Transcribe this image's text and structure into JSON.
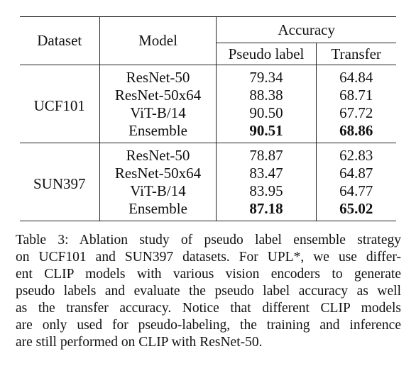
{
  "table": {
    "headers": {
      "dataset": "Dataset",
      "model": "Model",
      "accuracy": "Accuracy",
      "pseudo_label": "Pseudo label",
      "transfer": "Transfer"
    },
    "groups": [
      {
        "dataset": "UCF101",
        "rows": [
          {
            "model": "ResNet-50",
            "pseudo_label": "79.34",
            "transfer": "64.84",
            "bold": false
          },
          {
            "model": "ResNet-50x64",
            "pseudo_label": "88.38",
            "transfer": "68.71",
            "bold": false
          },
          {
            "model": "ViT-B/14",
            "pseudo_label": "90.50",
            "transfer": "67.72",
            "bold": false
          },
          {
            "model": "Ensemble",
            "pseudo_label": "90.51",
            "transfer": "68.86",
            "bold": true
          }
        ]
      },
      {
        "dataset": "SUN397",
        "rows": [
          {
            "model": "ResNet-50",
            "pseudo_label": "78.87",
            "transfer": "62.83",
            "bold": false
          },
          {
            "model": "ResNet-50x64",
            "pseudo_label": "83.47",
            "transfer": "64.87",
            "bold": false
          },
          {
            "model": "ViT-B/14",
            "pseudo_label": "83.95",
            "transfer": "64.77",
            "bold": false
          },
          {
            "model": "Ensemble",
            "pseudo_label": "87.18",
            "transfer": "65.02",
            "bold": true
          }
        ]
      }
    ]
  },
  "caption": {
    "lines": [
      "Table 3: Ablation study of pseudo label ensemble strategy",
      "on UCF101 and SUN397 datasets. For UPL*, we use differ-",
      "ent CLIP models with various vision encoders to generate",
      "pseudo labels and evaluate the pseudo label accuracy as well",
      "as the transfer accuracy. Notice that different CLIP models",
      "are only used for pseudo-labeling, the training and inference",
      "are still performed on CLIP with ResNet-50."
    ]
  }
}
